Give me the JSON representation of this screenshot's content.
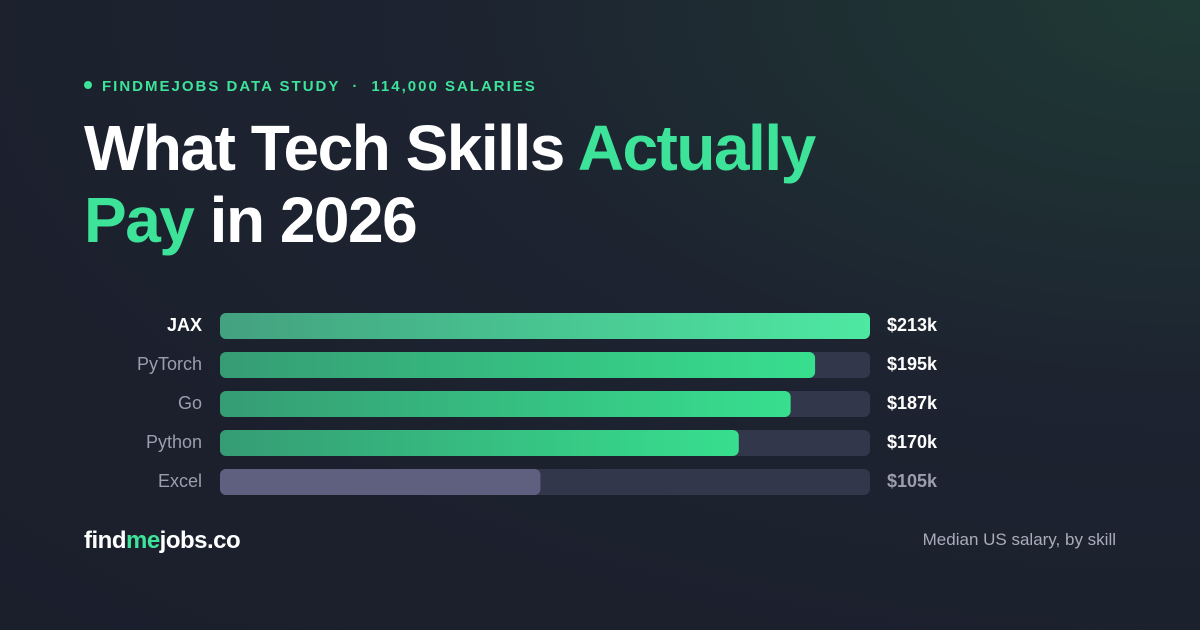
{
  "chart_data": {
    "type": "bar",
    "kicker": [
      "FINDMEJOBS DATA STUDY",
      "114,000 SALARIES"
    ],
    "title": [
      "What Tech Skills",
      "Actually",
      "Pay",
      "in 2026"
    ],
    "categories": [
      "JAX",
      "PyTorch",
      "Go",
      "Python",
      "Excel"
    ],
    "values": [
      213,
      195,
      187,
      170,
      105
    ],
    "value_labels": [
      "$213k",
      "$195k",
      "$187k",
      "$170k",
      "$105k"
    ],
    "colors": [
      "#4ee8a2",
      "#37df8e",
      "#37df8e",
      "#37df8e",
      "#5f6080"
    ],
    "logo": [
      "find",
      "me",
      "jobs.co"
    ],
    "note": "Median US salary, by skill"
  }
}
